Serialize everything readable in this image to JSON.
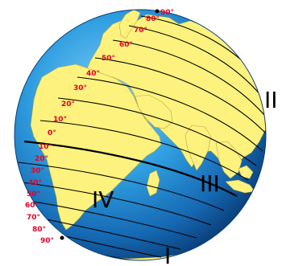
{
  "map": {
    "type": "globe-latitude-diagram",
    "colors": {
      "ocean_light": "#3aa9e6",
      "ocean_dark": "#0d4f8f",
      "land": "#fdf27d",
      "latitude_line": "#000000",
      "label": "#e60026"
    },
    "latitude_labels": {
      "north": [
        "90°",
        "80°",
        "70°",
        "60°",
        "50°",
        "40°",
        "30°",
        "20°",
        "10°",
        "0°"
      ],
      "south": [
        "10°",
        "20°",
        "30°",
        "40°",
        "50°",
        "60°",
        "70°",
        "80°",
        "90°"
      ]
    },
    "zone_labels": [
      "I",
      "II",
      "III",
      "IV"
    ],
    "north_pole_marker": "pole-dot",
    "south_pole_marker": "pole-dot"
  }
}
